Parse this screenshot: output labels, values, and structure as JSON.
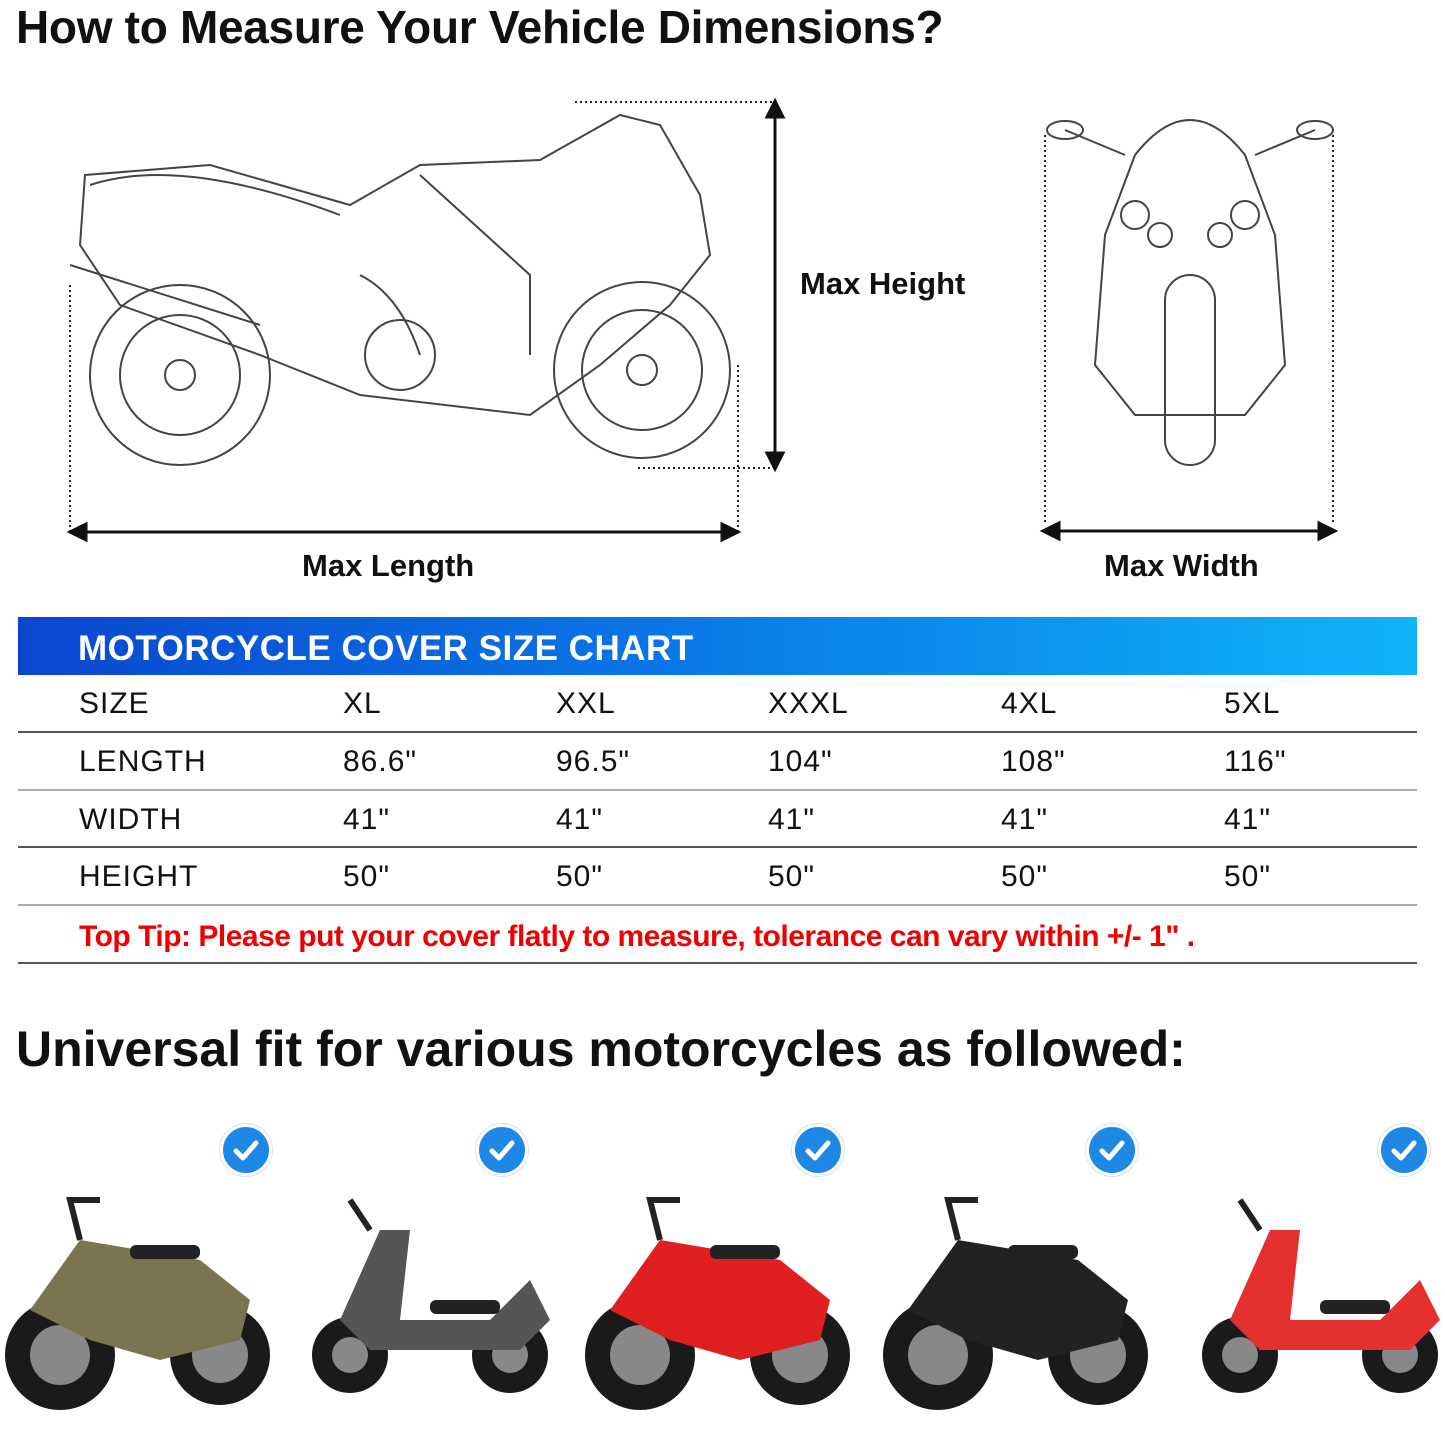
{
  "title": "How to Measure Your Vehicle Dimensions?",
  "diagram": {
    "max_height": "Max Height",
    "max_length": "Max Length",
    "max_width": "Max Width"
  },
  "chart": {
    "title": "MOTORCYCLE COVER SIZE CHART",
    "accent": "#0a7be8",
    "rows": [
      {
        "label": "SIZE",
        "values": [
          "XL",
          "XXL",
          "XXXL",
          "4XL",
          "5XL"
        ]
      },
      {
        "label": "LENGTH",
        "values": [
          "86.6\"",
          "96.5\"",
          "104\"",
          "108\"",
          "116\""
        ]
      },
      {
        "label": "WIDTH",
        "values": [
          "41\"",
          "41\"",
          "41\"",
          "41\"",
          "41\""
        ]
      },
      {
        "label": "HEIGHT",
        "values": [
          "50\"",
          "50\"",
          "50\"",
          "50\"",
          "50\""
        ]
      }
    ],
    "tip": "Top Tip: Please put your cover flatly to measure, tolerance can vary within +/- 1\" .",
    "tip_color": "#e00000"
  },
  "fit_title": "Universal fit for various motorcycles as followed:",
  "bikes": [
    {
      "type": "cruiser",
      "color": "#7a7550",
      "icon": "check-icon"
    },
    {
      "type": "scooter",
      "color": "#555555",
      "icon": "check-icon"
    },
    {
      "type": "sport",
      "color": "#e02020",
      "icon": "check-icon"
    },
    {
      "type": "cruiser",
      "color": "#222222",
      "icon": "check-icon"
    },
    {
      "type": "vespa-scooter",
      "color": "#e53030",
      "icon": "check-icon"
    }
  ]
}
